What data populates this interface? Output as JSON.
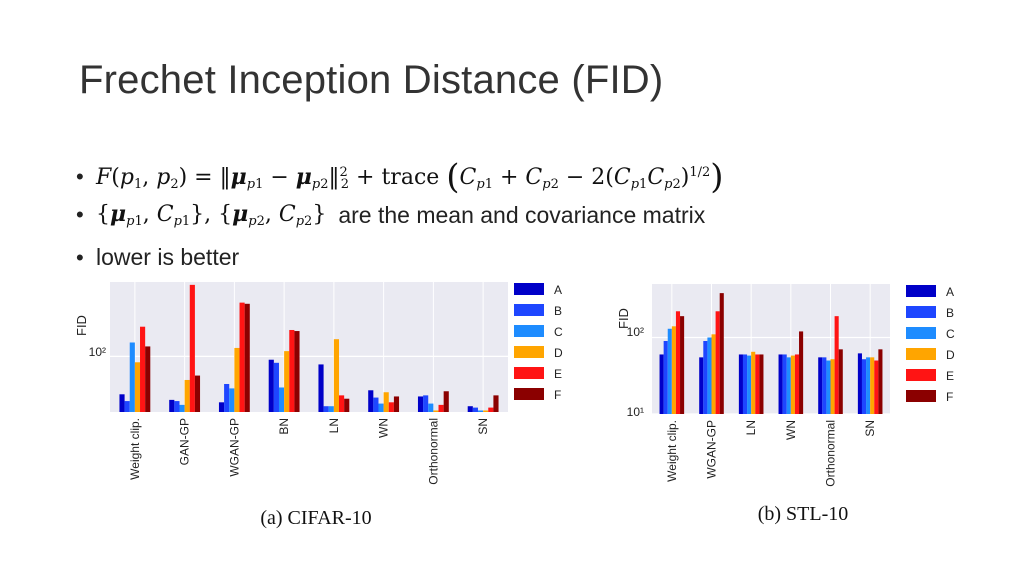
{
  "slide": {
    "title": "Frechet Inception Distance (FID)",
    "bullets": {
      "b2_text": "are the mean and covariance matrix",
      "b3_text": "lower is better"
    }
  },
  "colors": {
    "A": "#0000c8",
    "B": "#1e46ff",
    "C": "#1e8cff",
    "D": "#ffa500",
    "E": "#ff1414",
    "F": "#8b0000"
  },
  "chart_data": [
    {
      "type": "bar",
      "caption": "(a) CIFAR-10",
      "ylabel": "FID",
      "yscale": "log",
      "ytick_labels": [
        "10²"
      ],
      "ylim": [
        30,
        500
      ],
      "grid": true,
      "legend_position": "right",
      "categories": [
        "Weight clip.",
        "GAN-GP",
        "WGAN-GP",
        "BN",
        "LN",
        "WN",
        "Orthonormal",
        "SN"
      ],
      "series": [
        {
          "name": "A",
          "values": [
            44,
            39,
            37,
            93,
            84,
            48,
            42,
            34
          ]
        },
        {
          "name": "B",
          "values": [
            38,
            38,
            55,
            87,
            34,
            41,
            43,
            33
          ]
        },
        {
          "name": "C",
          "values": [
            135,
            35,
            50,
            51,
            34,
            36,
            36,
            31
          ]
        },
        {
          "name": "D",
          "values": [
            88,
            60,
            120,
            112,
            145,
            46,
            31,
            31
          ]
        },
        {
          "name": "E",
          "values": [
            190,
            470,
            320,
            177,
            43,
            37,
            35,
            33
          ]
        },
        {
          "name": "F",
          "values": [
            124,
            66,
            312,
            173,
            40,
            42,
            47,
            43
          ]
        }
      ]
    },
    {
      "type": "bar",
      "caption": "(b) STL-10",
      "ylabel": "FID",
      "yscale": "log",
      "ytick_labels": [
        "10¹",
        "10²"
      ],
      "ylim": [
        10,
        500
      ],
      "grid": true,
      "legend_position": "right",
      "categories": [
        "Weight clip.",
        "WGAN-GP",
        "LN",
        "WN",
        "Orthonormal",
        "SN"
      ],
      "series": [
        {
          "name": "A",
          "values": [
            60,
            55,
            60,
            60,
            55,
            62
          ]
        },
        {
          "name": "B",
          "values": [
            90,
            90,
            60,
            60,
            55,
            52
          ]
        },
        {
          "name": "C",
          "values": [
            130,
            100,
            58,
            55,
            50,
            55
          ]
        },
        {
          "name": "D",
          "values": [
            140,
            110,
            65,
            58,
            52,
            55
          ]
        },
        {
          "name": "E",
          "values": [
            220,
            220,
            60,
            60,
            190,
            50
          ]
        },
        {
          "name": "F",
          "values": [
            190,
            380,
            60,
            120,
            70,
            70
          ]
        }
      ]
    }
  ]
}
